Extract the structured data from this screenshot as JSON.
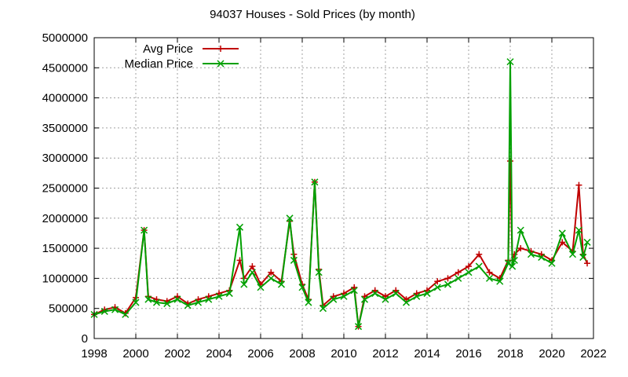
{
  "chart_data": {
    "type": "line",
    "title": "94037 Houses - Sold Prices (by month)",
    "xlabel": "",
    "ylabel": "",
    "xlim": [
      1998,
      2022
    ],
    "ylim": [
      0,
      5000000
    ],
    "x_ticks": [
      "1998",
      "2000",
      "2002",
      "2004",
      "2006",
      "2008",
      "2010",
      "2012",
      "2014",
      "2016",
      "2018",
      "2020",
      "2022"
    ],
    "y_ticks": [
      "0",
      "500000",
      "1000000",
      "1500000",
      "2000000",
      "2500000",
      "3000000",
      "3500000",
      "4000000",
      "4500000",
      "5000000"
    ],
    "grid": true,
    "legend_position": "top-left",
    "series": [
      {
        "name": "Avg Price",
        "color": "#c00000",
        "marker": "plus",
        "x": [
          1998.0,
          1998.5,
          1999.0,
          1999.5,
          2000.0,
          2000.4,
          2000.6,
          2001.0,
          2001.5,
          2002.0,
          2002.5,
          2003.0,
          2003.5,
          2004.0,
          2004.5,
          2005.0,
          2005.2,
          2005.6,
          2006.0,
          2006.5,
          2007.0,
          2007.4,
          2007.6,
          2008.0,
          2008.3,
          2008.6,
          2008.8,
          2009.0,
          2009.5,
          2010.0,
          2010.5,
          2010.7,
          2011.0,
          2011.5,
          2012.0,
          2012.5,
          2013.0,
          2013.5,
          2014.0,
          2014.5,
          2015.0,
          2015.5,
          2016.0,
          2016.5,
          2017.0,
          2017.5,
          2017.9,
          2018.0,
          2018.1,
          2018.2,
          2018.5,
          2019.0,
          2019.5,
          2020.0,
          2020.5,
          2021.0,
          2021.3,
          2021.5,
          2021.7
        ],
        "y": [
          400000,
          480000,
          520000,
          420000,
          680000,
          1800000,
          700000,
          650000,
          620000,
          700000,
          580000,
          650000,
          700000,
          750000,
          800000,
          1300000,
          1000000,
          1200000,
          900000,
          1100000,
          950000,
          1950000,
          1400000,
          900000,
          650000,
          2600000,
          1150000,
          550000,
          700000,
          750000,
          850000,
          200000,
          700000,
          800000,
          700000,
          800000,
          650000,
          750000,
          800000,
          950000,
          1000000,
          1100000,
          1200000,
          1400000,
          1100000,
          1000000,
          1300000,
          2950000,
          1300000,
          1400000,
          1500000,
          1450000,
          1400000,
          1300000,
          1600000,
          1450000,
          2550000,
          1400000,
          1250000
        ]
      },
      {
        "name": "Median Price",
        "color": "#00a000",
        "marker": "x",
        "x": [
          1998.0,
          1998.5,
          1999.0,
          1999.5,
          2000.0,
          2000.4,
          2000.6,
          2001.0,
          2001.5,
          2002.0,
          2002.5,
          2003.0,
          2003.5,
          2004.0,
          2004.5,
          2005.0,
          2005.2,
          2005.6,
          2006.0,
          2006.5,
          2007.0,
          2007.4,
          2007.6,
          2008.0,
          2008.3,
          2008.6,
          2008.8,
          2009.0,
          2009.5,
          2010.0,
          2010.5,
          2010.7,
          2011.0,
          2011.5,
          2012.0,
          2012.5,
          2013.0,
          2013.5,
          2014.0,
          2014.5,
          2015.0,
          2015.5,
          2016.0,
          2016.5,
          2017.0,
          2017.5,
          2017.9,
          2018.0,
          2018.1,
          2018.2,
          2018.5,
          2019.0,
          2019.5,
          2020.0,
          2020.5,
          2021.0,
          2021.3,
          2021.5,
          2021.7
        ],
        "y": [
          400000,
          450000,
          480000,
          400000,
          600000,
          1800000,
          650000,
          600000,
          580000,
          650000,
          550000,
          600000,
          650000,
          700000,
          750000,
          1850000,
          900000,
          1100000,
          850000,
          1000000,
          900000,
          2000000,
          1300000,
          850000,
          600000,
          2600000,
          1100000,
          500000,
          650000,
          700000,
          800000,
          200000,
          650000,
          750000,
          650000,
          750000,
          600000,
          700000,
          750000,
          850000,
          900000,
          1000000,
          1100000,
          1200000,
          1000000,
          950000,
          1250000,
          4600000,
          1200000,
          1300000,
          1800000,
          1400000,
          1350000,
          1250000,
          1750000,
          1400000,
          1800000,
          1350000,
          1600000
        ]
      }
    ]
  }
}
